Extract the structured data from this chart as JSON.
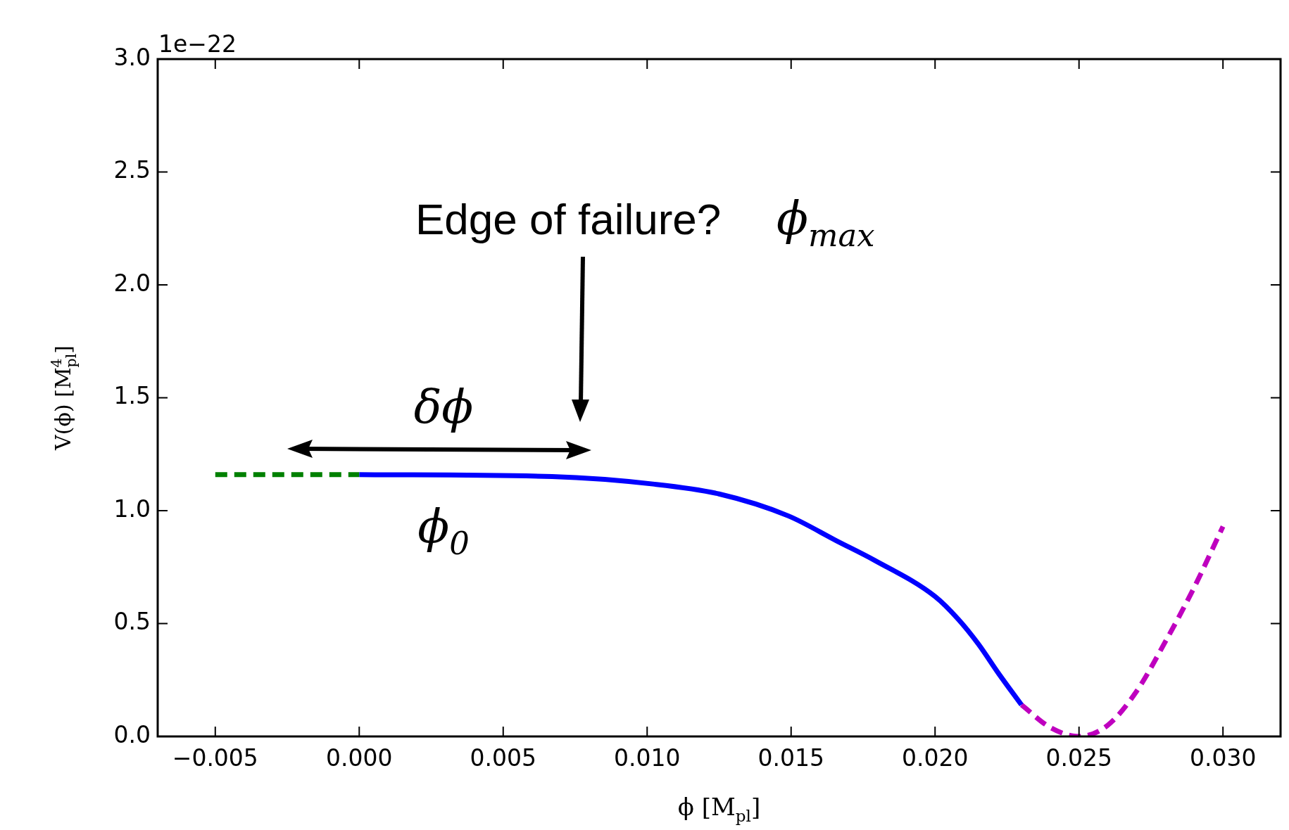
{
  "chart_data": {
    "type": "line",
    "xlabel": "ϕ [M$_{pl}$]",
    "ylabel": "V(ϕ) [M$_{pl}$$^{4}$]",
    "xlim": [
      -0.007,
      0.032
    ],
    "xticks": [
      {
        "value": -0.005,
        "label": "−0.005"
      },
      {
        "value": 0,
        "label": "0.000"
      },
      {
        "value": 0.005,
        "label": "0.005"
      },
      {
        "value": 0.01,
        "label": "0.010"
      },
      {
        "value": 0.015,
        "label": "0.015"
      },
      {
        "value": 0.02,
        "label": "0.020"
      },
      {
        "value": 0.025,
        "label": "0.025"
      },
      {
        "value": 0.03,
        "label": "0.030"
      }
    ],
    "ylim": [
      0,
      3
    ],
    "yticks": [
      {
        "value": 0,
        "label": "0.0"
      },
      {
        "value": 0.5,
        "label": "0.5"
      },
      {
        "value": 1,
        "label": "1.0"
      },
      {
        "value": 1.5,
        "label": "1.5"
      },
      {
        "value": 2,
        "label": "2.0"
      },
      {
        "value": 2.5,
        "label": "2.5"
      },
      {
        "value": 3,
        "label": "3.0"
      }
    ],
    "grid": false,
    "legend": false,
    "marker": "none",
    "series": [
      {
        "color": "#008000",
        "line_style": "dashed",
        "x": [
          -0.005,
          -0.0025,
          0
        ],
        "values": [
          1.16,
          1.16,
          1.16
        ]
      },
      {
        "color": "#0000ff",
        "line_style": "solid",
        "x": [
          0,
          0.0067,
          0.0102,
          0.0125,
          0.0149,
          0.0166,
          0.0179,
          0.02,
          0.0208,
          0.0215,
          0.0222,
          0.023
        ],
        "values": [
          1.16,
          1.151,
          1.118,
          1.074,
          0.977,
          0.865,
          0.78,
          0.62,
          0.52,
          0.41,
          0.28,
          0.14
        ]
      },
      {
        "color": "#bf00bf",
        "line_style": "dashed",
        "x": [
          0.023,
          0.024,
          0.025,
          0.026,
          0.027,
          0.028,
          0.029,
          0.03
        ],
        "values": [
          0.14,
          0.04,
          0,
          0.05,
          0.2,
          0.42,
          0.66,
          0.93
        ]
      }
    ],
    "annotations": [
      "1e−22",
      "Edge of failure?",
      "ϕ$_{max}$",
      "δϕ",
      "ϕ$_{0}$"
    ]
  }
}
